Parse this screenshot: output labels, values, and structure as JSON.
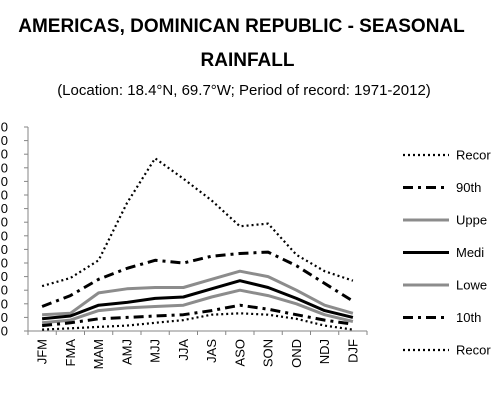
{
  "chart_data": {
    "type": "line",
    "title_line1": "AMERICAS, DOMINICAN REPUBLIC - SEASONAL",
    "title_line2": "RAINFALL",
    "subtitle": "(Location: 18.4°N, 69.7°W; Period of record: 1971-2012)",
    "categories": [
      "JFM",
      "FMA",
      "MAM",
      "AMJ",
      "MJJ",
      "JJA",
      "JAS",
      "ASO",
      "SON",
      "OND",
      "NDJ",
      "DJF"
    ],
    "y_tick_labels": [
      "0",
      "0",
      "0",
      "0",
      "0",
      "0",
      "0",
      "0",
      "0",
      "0",
      "0",
      "0",
      "0",
      "0",
      "0",
      "0"
    ],
    "ylim": [
      0,
      15
    ],
    "grid": false,
    "legend_position": "right",
    "series": [
      {
        "name": "Recor",
        "style": "dotted",
        "color": "#000000",
        "width": 2.2,
        "values": [
          3.3,
          3.9,
          5.2,
          9.4,
          12.7,
          11.2,
          9.6,
          7.7,
          7.9,
          5.6,
          4.4,
          3.7
        ]
      },
      {
        "name": "90th",
        "style": "dashdot",
        "color": "#000000",
        "width": 3,
        "values": [
          1.8,
          2.6,
          3.8,
          4.6,
          5.2,
          5.0,
          5.5,
          5.7,
          5.8,
          4.8,
          3.5,
          2.2
        ]
      },
      {
        "name": "Uppe",
        "style": "solid",
        "color": "#8c8c8c",
        "width": 3,
        "values": [
          1.2,
          1.3,
          2.8,
          3.1,
          3.2,
          3.2,
          3.8,
          4.4,
          4.0,
          3.0,
          1.9,
          1.3
        ]
      },
      {
        "name": "Medi",
        "style": "solid",
        "color": "#000000",
        "width": 3,
        "values": [
          0.9,
          1.1,
          1.9,
          2.1,
          2.4,
          2.5,
          3.1,
          3.7,
          3.2,
          2.4,
          1.5,
          1.0
        ]
      },
      {
        "name": "Lowe",
        "style": "solid",
        "color": "#8c8c8c",
        "width": 3,
        "values": [
          0.6,
          0.8,
          1.5,
          1.7,
          1.8,
          1.9,
          2.5,
          3.0,
          2.6,
          2.0,
          1.2,
          0.7
        ]
      },
      {
        "name": "10th",
        "style": "dashdot",
        "color": "#000000",
        "width": 3,
        "values": [
          0.4,
          0.6,
          0.9,
          1.0,
          1.1,
          1.2,
          1.5,
          1.9,
          1.6,
          1.2,
          0.8,
          0.5
        ]
      },
      {
        "name": "Recor",
        "style": "dotted",
        "color": "#000000",
        "width": 2.2,
        "values": [
          0.1,
          0.2,
          0.3,
          0.4,
          0.6,
          0.8,
          1.2,
          1.3,
          1.2,
          0.9,
          0.4,
          0.1
        ]
      }
    ]
  }
}
